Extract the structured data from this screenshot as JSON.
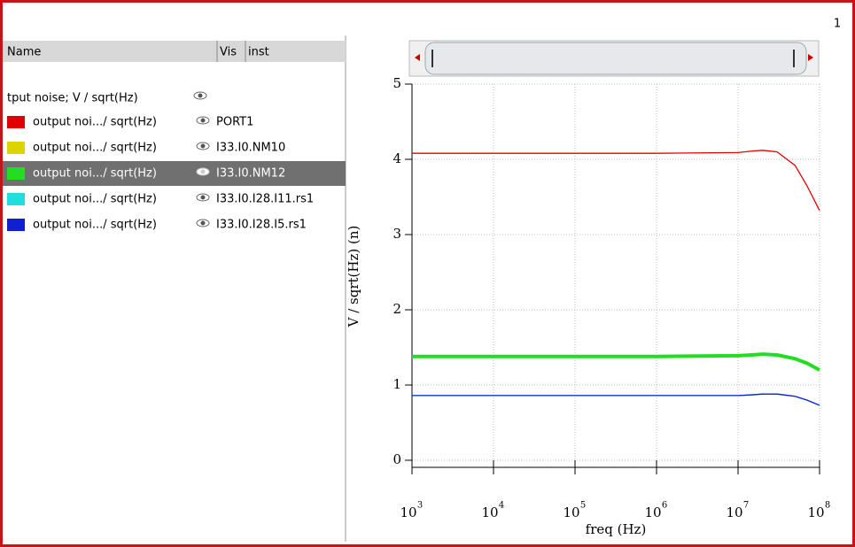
{
  "page_number": "1",
  "signal_table": {
    "columns": [
      "Name",
      "Vis",
      "inst"
    ],
    "group": "tput noise; V / sqrt(Hz)",
    "rows": [
      "output noi.../ sqrt(Hz)",
      "output noi.../ sqrt(Hz)",
      "output noi.../ sqrt(Hz)",
      "output noi.../ sqrt(Hz)",
      "output noi.../ sqrt(Hz)"
    ],
    "selected_row": 2
  },
  "chart_data": {
    "type": "line",
    "ylabel": "V / sqrt(Hz) (n)",
    "xlabel": "freq (Hz)",
    "x": [
      1000,
      10000,
      100000,
      1000000,
      10000000,
      15000000,
      20000000,
      30000000,
      50000000,
      70000000,
      100000000
    ],
    "xscale": "log",
    "xlim": [
      1000,
      100000000
    ],
    "xticks": [
      {
        "value": 1000,
        "label": "10",
        "exponent": "3"
      },
      {
        "value": 10000,
        "label": "10",
        "exponent": "4"
      },
      {
        "value": 100000,
        "label": "10",
        "exponent": "5"
      },
      {
        "value": 1000000,
        "label": "10",
        "exponent": "6"
      },
      {
        "value": 10000000,
        "label": "10",
        "exponent": "7"
      },
      {
        "value": 100000000,
        "label": "10",
        "exponent": "8"
      }
    ],
    "ylim": [
      0,
      5
    ],
    "yticks": [
      0,
      1,
      2,
      3,
      4,
      5
    ],
    "grid": true,
    "series": [
      {
        "name": "PORT1",
        "color": "#e00000",
        "width": 1.3,
        "values": [
          4.08,
          4.08,
          4.08,
          4.08,
          4.09,
          4.11,
          4.12,
          4.1,
          3.92,
          3.65,
          3.32
        ]
      },
      {
        "name": "I33.I0.NM10",
        "color": "#dcd400",
        "width": 1.3,
        "values": [
          1.38,
          1.38,
          1.38,
          1.38,
          1.39,
          1.4,
          1.41,
          1.4,
          1.35,
          1.29,
          1.2
        ]
      },
      {
        "name": "I33.I0.NM12",
        "color": "#22dd22",
        "width": 4,
        "values": [
          1.38,
          1.38,
          1.38,
          1.38,
          1.39,
          1.4,
          1.41,
          1.4,
          1.35,
          1.29,
          1.2
        ]
      },
      {
        "name": "I33.I0.I28.I11.rs1",
        "color": "#22dddd",
        "width": 1.3,
        "values": [
          0.86,
          0.86,
          0.86,
          0.86,
          0.86,
          0.87,
          0.88,
          0.88,
          0.85,
          0.8,
          0.73
        ]
      },
      {
        "name": "I33.I0.I28.I5.rs1",
        "color": "#1020d0",
        "width": 1.3,
        "values": [
          0.86,
          0.86,
          0.86,
          0.86,
          0.86,
          0.87,
          0.88,
          0.88,
          0.85,
          0.8,
          0.73
        ]
      }
    ]
  }
}
